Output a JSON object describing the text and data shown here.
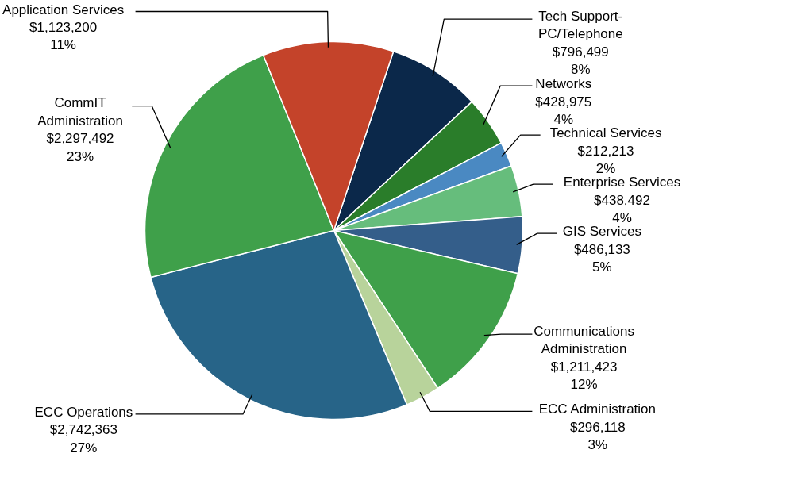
{
  "chart_data": {
    "type": "pie",
    "categories": [
      "Tech Support-\nPC/Telephone",
      "Networks",
      "Technical Services",
      "Enterprise Services",
      "GIS Services",
      "Communications\nAdministration",
      "ECC Administration",
      "ECC Operations",
      "CommIT\nAdministration",
      "Application Services"
    ],
    "values": [
      796499,
      428975,
      212213,
      438492,
      486133,
      1211423,
      296118,
      2742363,
      2297492,
      1123200
    ],
    "value_labels": [
      "$796,499\n8%",
      "$428,975\n4%",
      "$212,213\n2%",
      "$438,492\n4%",
      "$486,133\n5%",
      "$1,211,423\n12%",
      "$296,118\n3%",
      "$2,742,363\n27%",
      "$2,297,492\n23%",
      "$1,123,200\n11%"
    ],
    "colors": [
      "#0b284a",
      "#2a7d2a",
      "#4a89c2",
      "#66bd7c",
      "#345e8a",
      "#3fa04a",
      "#b8d39b",
      "#276488",
      "#3fa04a",
      "#c4432a"
    ]
  }
}
